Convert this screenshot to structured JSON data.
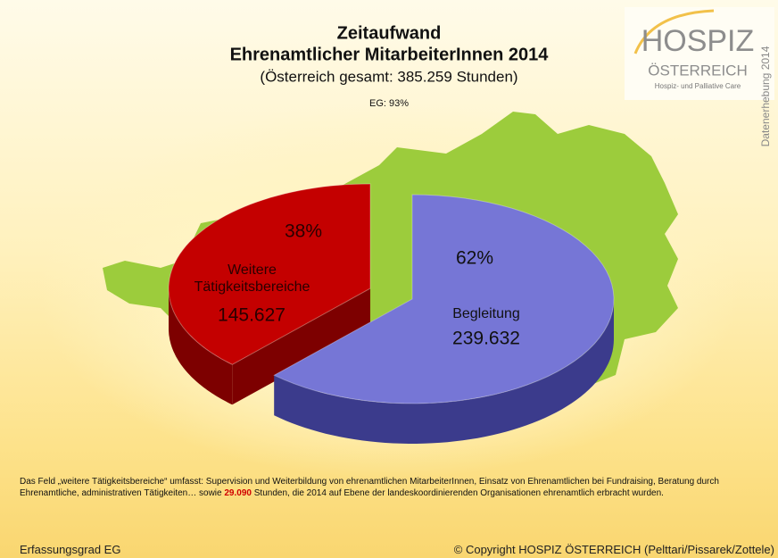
{
  "chart_data": {
    "type": "pie",
    "title": "Zeitaufwand",
    "subtitle": "Ehrenamtlicher MitarbeiterInnen 2014",
    "subtitle2": "(Österreich gesamt: 385.259 Stunden)",
    "annotation": "EG: 93%",
    "categories": [
      "Begleitung",
      "Weitere Tätigkeitsbereiche"
    ],
    "values": [
      62,
      38
    ],
    "value_labels": [
      "62%",
      "38%"
    ],
    "amount_labels": [
      "239.632",
      "145.627"
    ],
    "colors": [
      "#7676d6",
      "#c40000"
    ],
    "side_colors": [
      "#3b3b8c",
      "#7d0000"
    ]
  },
  "logo": {
    "name": "HOSPIZ",
    "country": "ÖSTERREICH",
    "tagline": "Hospiz- und Palliative Care",
    "side_text": "Datenerhebung 2014"
  },
  "note": {
    "before": "Das Feld „weitere Tätigkeitsbereiche“ umfasst: Supervision und Weiterbildung von ehrenamtlichen MitarbeiterInnen, Einsatz von Ehrenamtlichen bei Fundraising, Beratung durch Ehrenamtliche, administrativen Tätigkeiten… sowie",
    "highlight": "29.090",
    "after": "Stunden, die 2014 auf Ebene der landeskoordinierenden Organisationen ehrenamtlich erbracht wurden."
  },
  "footer": {
    "left": "Erfassungsgrad EG",
    "right": "© Copyright HOSPIZ ÖSTERREICH (Pelttari/Pissarek/Zottele)"
  }
}
